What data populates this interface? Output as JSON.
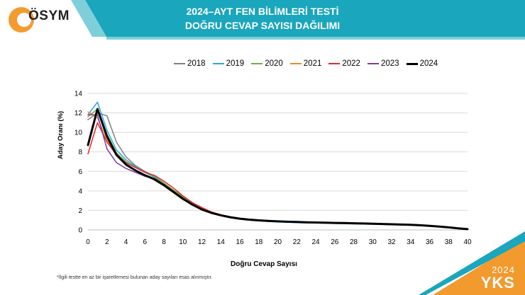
{
  "header": {
    "logo_text": "ÖSYM",
    "title_line1": "2024–AYT FEN BİLİMLERİ TESTİ",
    "title_line2": "DOĞRU CEVAP SAYISI DAĞILIMI"
  },
  "footnote": "*İlgili testte en az bir işaretlemesi bulunan aday sayıları esas alınmıştır.",
  "corner": {
    "year": "2024",
    "label": "YKS"
  },
  "colors": {
    "header_bg": "#1aa6bd",
    "logo_orange": "#f39b2f",
    "corner_orange": "#f29a2e"
  },
  "chart_data": {
    "type": "line",
    "xlabel": "Doğru Cevap Sayısı",
    "ylabel": "Aday Oranı (%)",
    "xlim": [
      0,
      40
    ],
    "ylim": [
      0,
      14
    ],
    "xticks": [
      "0",
      "2",
      "4",
      "6",
      "8",
      "10",
      "12",
      "14",
      "16",
      "18",
      "20",
      "22",
      "24",
      "26",
      "28",
      "30",
      "32",
      "34",
      "36",
      "38",
      "40"
    ],
    "yticks": [
      "0",
      "2",
      "4",
      "6",
      "8",
      "10",
      "12",
      "14"
    ],
    "grid": "horizontal",
    "legend_position": "top",
    "x": [
      0,
      1,
      2,
      3,
      4,
      5,
      6,
      7,
      8,
      9,
      10,
      11,
      12,
      13,
      14,
      15,
      16,
      17,
      18,
      19,
      20,
      21,
      22,
      23,
      24,
      25,
      26,
      27,
      28,
      29,
      30,
      31,
      32,
      33,
      34,
      35,
      36,
      37,
      38,
      39,
      40
    ],
    "series": [
      {
        "name": "2018",
        "color": "#808080",
        "width": 1.5,
        "values": [
          11.3,
          12.0,
          11.7,
          9.0,
          7.5,
          6.6,
          6.0,
          5.5,
          4.8,
          4.0,
          3.3,
          2.7,
          2.2,
          1.8,
          1.5,
          1.3,
          1.15,
          1.05,
          0.98,
          0.92,
          0.88,
          0.84,
          0.81,
          0.78,
          0.76,
          0.74,
          0.72,
          0.7,
          0.68,
          0.66,
          0.64,
          0.61,
          0.58,
          0.55,
          0.52,
          0.48,
          0.42,
          0.35,
          0.27,
          0.18,
          0.1
        ]
      },
      {
        "name": "2019",
        "color": "#29a8e0",
        "width": 1.5,
        "values": [
          11.8,
          13.1,
          10.2,
          8.2,
          7.2,
          6.5,
          5.9,
          5.4,
          4.7,
          3.9,
          3.2,
          2.6,
          2.1,
          1.7,
          1.45,
          1.25,
          1.1,
          1.0,
          0.92,
          0.86,
          0.82,
          0.78,
          0.75,
          0.72,
          0.7,
          0.68,
          0.66,
          0.64,
          0.62,
          0.6,
          0.58,
          0.56,
          0.53,
          0.5,
          0.47,
          0.43,
          0.38,
          0.31,
          0.24,
          0.16,
          0.08
        ]
      },
      {
        "name": "2020",
        "color": "#6ab23e",
        "width": 1.5,
        "values": [
          11.6,
          12.4,
          9.8,
          7.9,
          7.0,
          6.4,
          5.9,
          5.5,
          4.8,
          4.1,
          3.4,
          2.8,
          2.25,
          1.8,
          1.5,
          1.3,
          1.15,
          1.05,
          0.97,
          0.91,
          0.86,
          0.82,
          0.79,
          0.76,
          0.74,
          0.72,
          0.7,
          0.68,
          0.66,
          0.64,
          0.62,
          0.59,
          0.56,
          0.53,
          0.5,
          0.46,
          0.4,
          0.33,
          0.25,
          0.17,
          0.09
        ]
      },
      {
        "name": "2021",
        "color": "#ee8a2c",
        "width": 1.5,
        "values": [
          12.1,
          11.5,
          9.2,
          7.6,
          6.7,
          6.1,
          5.6,
          5.1,
          4.5,
          3.8,
          3.1,
          2.6,
          2.1,
          1.75,
          1.5,
          1.3,
          1.17,
          1.08,
          1.01,
          0.95,
          0.91,
          0.87,
          0.84,
          0.81,
          0.79,
          0.77,
          0.75,
          0.73,
          0.71,
          0.69,
          0.67,
          0.64,
          0.61,
          0.58,
          0.55,
          0.5,
          0.44,
          0.36,
          0.28,
          0.19,
          0.1
        ]
      },
      {
        "name": "2022",
        "color": "#e8262a",
        "width": 1.5,
        "values": [
          7.8,
          11.0,
          9.0,
          7.7,
          6.9,
          6.4,
          5.9,
          5.6,
          5.0,
          4.3,
          3.5,
          2.8,
          2.3,
          1.85,
          1.55,
          1.35,
          1.2,
          1.1,
          1.02,
          0.96,
          0.91,
          0.87,
          0.84,
          0.81,
          0.79,
          0.77,
          0.75,
          0.73,
          0.71,
          0.69,
          0.67,
          0.64,
          0.61,
          0.58,
          0.55,
          0.5,
          0.44,
          0.36,
          0.28,
          0.19,
          0.1
        ]
      },
      {
        "name": "2023",
        "color": "#7b3aa3",
        "width": 1.5,
        "values": [
          11.8,
          11.8,
          8.3,
          6.9,
          6.3,
          5.9,
          5.5,
          5.2,
          4.6,
          3.9,
          3.2,
          2.6,
          2.1,
          1.75,
          1.5,
          1.3,
          1.15,
          1.05,
          0.98,
          0.92,
          0.88,
          0.84,
          0.81,
          0.78,
          0.76,
          0.74,
          0.72,
          0.7,
          0.68,
          0.66,
          0.64,
          0.61,
          0.58,
          0.55,
          0.52,
          0.48,
          0.42,
          0.34,
          0.26,
          0.17,
          0.09
        ]
      },
      {
        "name": "2024",
        "color": "#000000",
        "width": 3,
        "values": [
          8.7,
          12.4,
          9.6,
          7.7,
          6.7,
          6.1,
          5.6,
          5.2,
          4.6,
          3.9,
          3.2,
          2.6,
          2.1,
          1.75,
          1.5,
          1.3,
          1.15,
          1.05,
          0.98,
          0.92,
          0.88,
          0.84,
          0.81,
          0.78,
          0.76,
          0.74,
          0.72,
          0.7,
          0.68,
          0.66,
          0.64,
          0.61,
          0.58,
          0.55,
          0.52,
          0.48,
          0.42,
          0.34,
          0.26,
          0.17,
          0.08
        ]
      }
    ]
  }
}
